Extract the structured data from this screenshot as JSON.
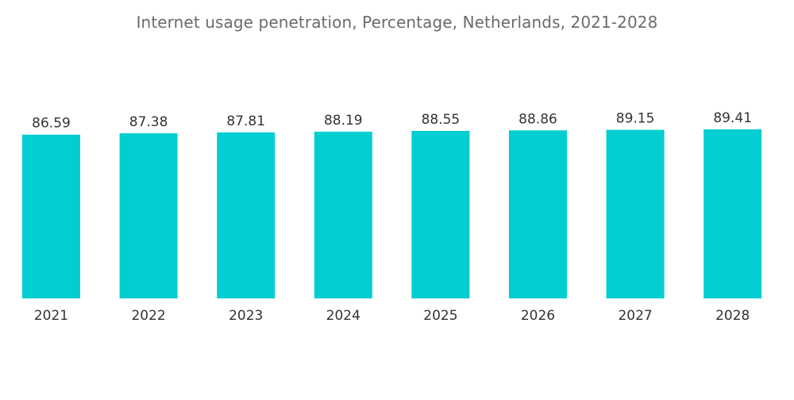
{
  "chart_data": {
    "type": "bar",
    "title": "Internet usage penetration, Percentage, Netherlands, 2021-2028",
    "categories": [
      "2021",
      "2022",
      "2023",
      "2024",
      "2025",
      "2026",
      "2027",
      "2028"
    ],
    "values": [
      86.59,
      87.38,
      87.81,
      88.19,
      88.55,
      88.86,
      89.15,
      89.41
    ],
    "value_labels": [
      "86.59",
      "87.38",
      "87.81",
      "88.19",
      "88.55",
      "88.86",
      "89.15",
      "89.41"
    ],
    "xlabel": "",
    "ylabel": "",
    "ylim": [
      0,
      89.41
    ],
    "grid": false,
    "legend": "none",
    "bar_color": "#00CED1"
  }
}
